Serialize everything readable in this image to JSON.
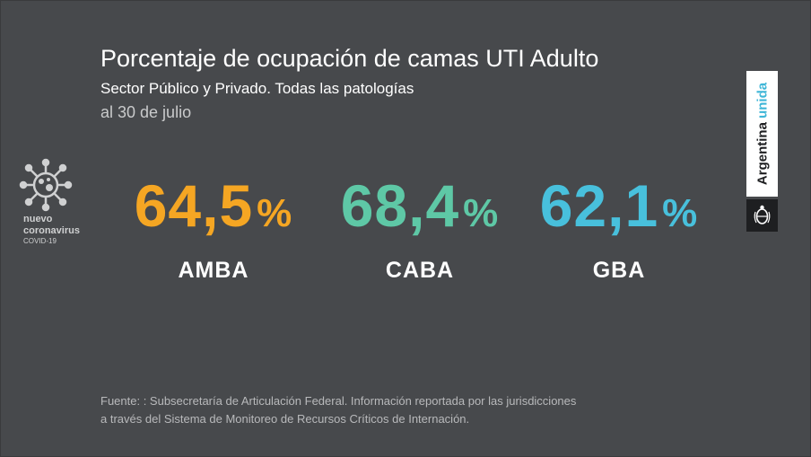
{
  "header": {
    "title": "Porcentaje de ocupación de camas UTI Adulto",
    "subtitle": "Sector Público y Privado. Todas las patologías",
    "date": "al 30 de julio"
  },
  "logo_covid": {
    "icon": "virus-icon",
    "line1": "nuevo",
    "line2": "coronavirus",
    "line3": "COVID-19"
  },
  "metrics": [
    {
      "value": "64,5",
      "unit": "%",
      "label": "AMBA",
      "color": "#f5a623"
    },
    {
      "value": "68,4",
      "unit": "%",
      "label": "CABA",
      "color": "#5ec8a6"
    },
    {
      "value": "62,1",
      "unit": "%",
      "label": "GBA",
      "color": "#48c0dc"
    }
  ],
  "brand": {
    "word1": "Argentina",
    "word2": "unida",
    "accent_color": "#3fb6d7",
    "seal_icon": "coat-of-arms-icon"
  },
  "footer": {
    "line1": "Fuente: : Subsecretaría de Articulación Federal. Información reportada por las jurisdicciones",
    "line2": "a través del Sistema de Monitoreo de Recursos Críticos de Internación."
  }
}
